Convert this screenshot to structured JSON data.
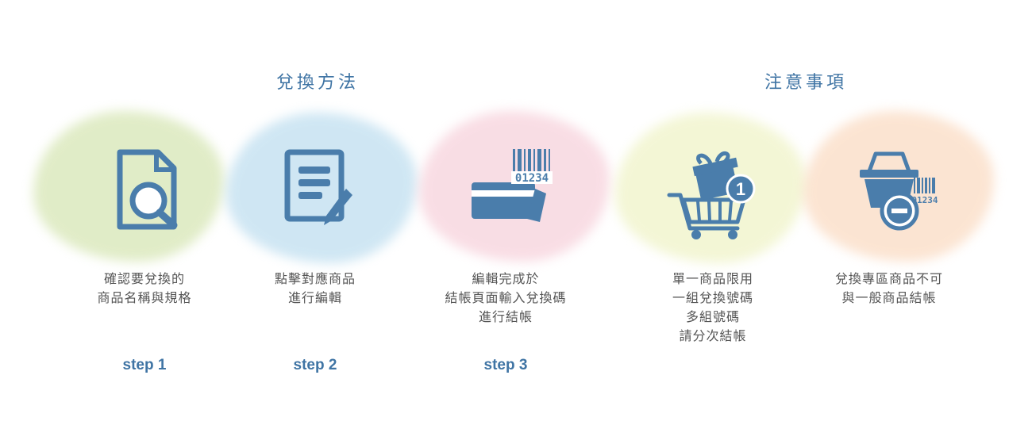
{
  "headers": {
    "method": "兌換方法",
    "notes": "注意事項"
  },
  "colors": {
    "accent": "#3f74a4",
    "icon": "#4a7dab",
    "blob_green": "#c8dd9a",
    "blob_blue": "#a9d3ea",
    "blob_pink": "#f4c2cf",
    "blob_yellow": "#eaefb4",
    "blob_orange": "#f9cfae"
  },
  "cards": [
    {
      "icon": "document-search-icon",
      "lines": [
        "確認要兌換的",
        "商品名稱與規格"
      ],
      "step": "step 1"
    },
    {
      "icon": "document-edit-icon",
      "lines": [
        "點擊對應商品",
        "進行編輯"
      ],
      "step": "step 2"
    },
    {
      "icon": "card-barcode-icon",
      "lines": [
        "編輯完成於",
        "結帳頁面輸入兌換碼",
        "進行結帳"
      ],
      "step": "step 3",
      "barcode_text": "01234"
    },
    {
      "icon": "gift-cart-icon",
      "lines": [
        "單一商品限用",
        "一組兌換號碼",
        "多組號碼",
        "請分次結帳"
      ],
      "badge": "1"
    },
    {
      "icon": "basket-barcode-icon",
      "lines": [
        "兌換專區商品不可",
        "與一般商品結帳"
      ],
      "barcode_text": "01234"
    }
  ]
}
